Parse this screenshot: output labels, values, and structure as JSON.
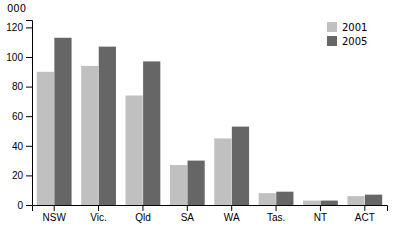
{
  "chart_data": {
    "type": "bar",
    "categories": [
      "NSW",
      "Vic.",
      "Qld",
      "SA",
      "WA",
      "Tas.",
      "NT",
      "ACT"
    ],
    "series": [
      {
        "name": "2001",
        "color": "#c0c0c0",
        "values": [
          90,
          94,
          74,
          27,
          45,
          8,
          3,
          6
        ]
      },
      {
        "name": "2005",
        "color": "#666666",
        "values": [
          113,
          107,
          97,
          30,
          53,
          9,
          3,
          7
        ]
      }
    ],
    "ylabel": "000",
    "ylim": [
      0,
      125
    ],
    "yticks": [
      0,
      20,
      40,
      60,
      80,
      100,
      120
    ],
    "legend": "upper right"
  }
}
